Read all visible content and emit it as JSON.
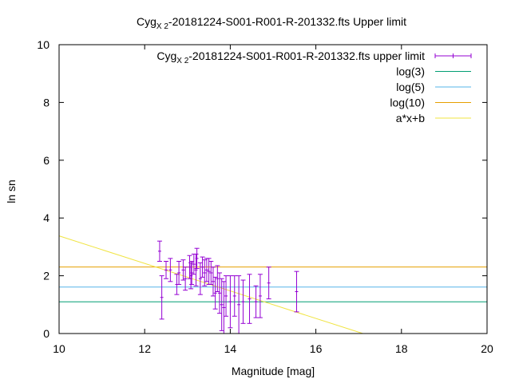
{
  "chart_data": {
    "type": "scatter",
    "title": {
      "main": "Cyg",
      "sub": "X 2",
      "rest": "-20181224-S001-R001-R-201332.fts Upper limit"
    },
    "xlabel": "Magnitude [mag]",
    "ylabel": "ln sn",
    "xlim": [
      10,
      20
    ],
    "ylim": [
      0,
      10
    ],
    "xticks": [
      "10",
      "12",
      "14",
      "16",
      "18",
      "20"
    ],
    "yticks": [
      "0",
      "2",
      "4",
      "6",
      "8",
      "10"
    ],
    "grid": false,
    "legend_position": "top-right",
    "series": [
      {
        "name": {
          "main": "Cyg",
          "sub": "X 2",
          "rest": "-20181224-S001-R001-R-201332.fts upper limit"
        },
        "kind": "errorbars",
        "color": "#9400d3",
        "points": [
          {
            "x": 12.35,
            "y": 2.85,
            "err": 0.35
          },
          {
            "x": 12.4,
            "y": 1.25,
            "err": 0.75
          },
          {
            "x": 12.5,
            "y": 2.2,
            "err": 0.3
          },
          {
            "x": 12.6,
            "y": 2.2,
            "err": 0.4
          },
          {
            "x": 12.75,
            "y": 1.7,
            "err": 0.35
          },
          {
            "x": 12.8,
            "y": 2.1,
            "err": 0.4
          },
          {
            "x": 12.9,
            "y": 2.2,
            "err": 0.35
          },
          {
            "x": 12.95,
            "y": 1.9,
            "err": 0.4
          },
          {
            "x": 13.05,
            "y": 2.3,
            "err": 0.4
          },
          {
            "x": 13.08,
            "y": 2.0,
            "err": 0.45
          },
          {
            "x": 13.1,
            "y": 2.1,
            "err": 0.4
          },
          {
            "x": 13.15,
            "y": 2.4,
            "err": 0.35
          },
          {
            "x": 13.2,
            "y": 2.2,
            "err": 0.55
          },
          {
            "x": 13.22,
            "y": 2.6,
            "err": 0.35
          },
          {
            "x": 13.3,
            "y": 1.9,
            "err": 0.55
          },
          {
            "x": 13.35,
            "y": 2.3,
            "err": 0.35
          },
          {
            "x": 13.4,
            "y": 2.1,
            "err": 0.45
          },
          {
            "x": 13.45,
            "y": 2.2,
            "err": 0.4
          },
          {
            "x": 13.5,
            "y": 2.15,
            "err": 0.45
          },
          {
            "x": 13.55,
            "y": 2.1,
            "err": 0.4
          },
          {
            "x": 13.6,
            "y": 1.8,
            "err": 0.5
          },
          {
            "x": 13.65,
            "y": 1.4,
            "err": 0.55
          },
          {
            "x": 13.7,
            "y": 1.9,
            "err": 0.45
          },
          {
            "x": 13.75,
            "y": 1.4,
            "err": 0.7
          },
          {
            "x": 13.8,
            "y": 1.0,
            "err": 0.9
          },
          {
            "x": 13.85,
            "y": 0.9,
            "err": 0.9
          },
          {
            "x": 13.9,
            "y": 1.3,
            "err": 0.7
          },
          {
            "x": 14.0,
            "y": 1.1,
            "err": 0.9
          },
          {
            "x": 14.1,
            "y": 1.3,
            "err": 0.7
          },
          {
            "x": 14.2,
            "y": 1.0,
            "err": 1.0
          },
          {
            "x": 14.3,
            "y": 1.1,
            "err": 0.75
          },
          {
            "x": 14.45,
            "y": 1.2,
            "err": 0.85
          },
          {
            "x": 14.6,
            "y": 1.1,
            "err": 0.55
          },
          {
            "x": 14.7,
            "y": 1.3,
            "err": 0.75
          },
          {
            "x": 14.9,
            "y": 1.75,
            "err": 0.55
          },
          {
            "x": 15.55,
            "y": 1.45,
            "err": 0.7
          }
        ]
      },
      {
        "name": "log(3)",
        "kind": "hline",
        "y": 1.0986,
        "color": "#009e73"
      },
      {
        "name": "log(5)",
        "kind": "hline",
        "y": 1.6094,
        "color": "#56b4e9"
      },
      {
        "name": "log(10)",
        "kind": "hline",
        "y": 2.3026,
        "color": "#e69f00"
      },
      {
        "name": "a*x+b",
        "kind": "fit_line",
        "x": [
          10,
          17.1
        ],
        "y": [
          3.38,
          0
        ],
        "color": "#f0e442"
      }
    ]
  }
}
